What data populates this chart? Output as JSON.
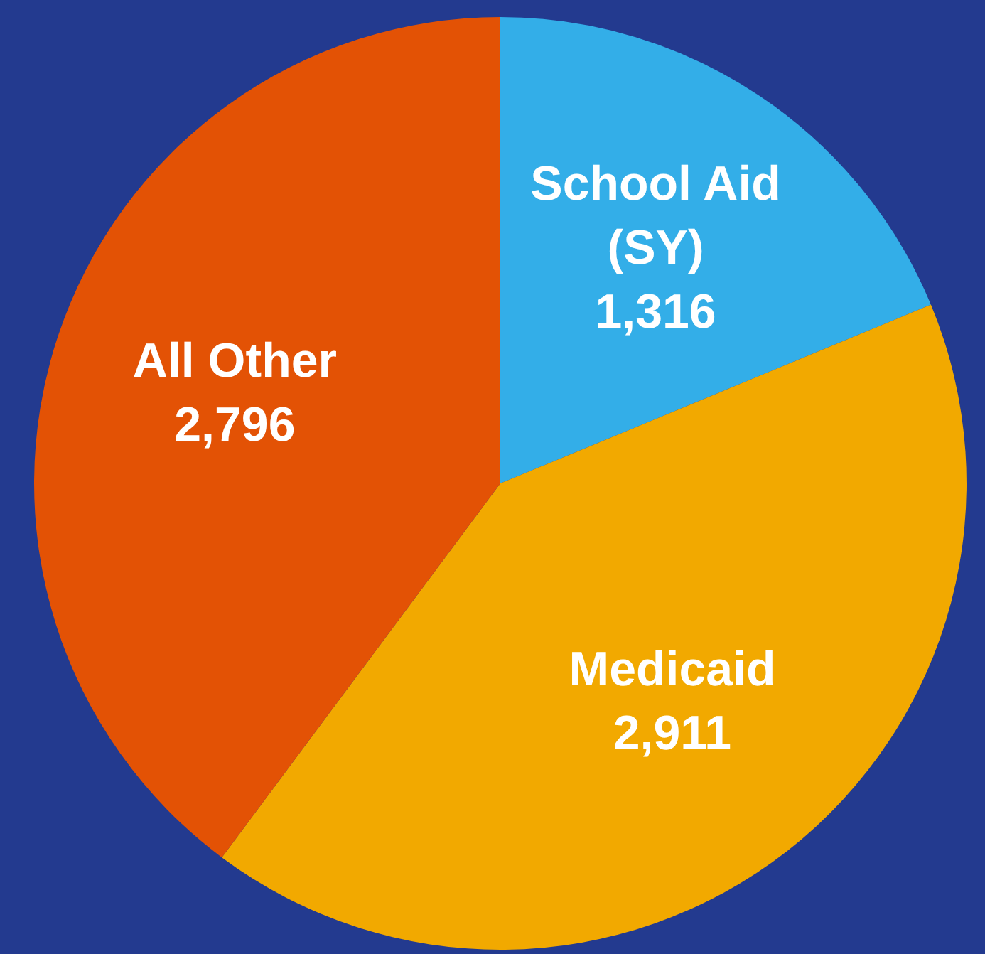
{
  "chart_data": {
    "type": "pie",
    "categories": [
      "School Aid (SY)",
      "Medicaid",
      "All Other"
    ],
    "values": [
      1316,
      2911,
      2796
    ],
    "value_labels": [
      "1,316",
      "2,911",
      "2,796"
    ],
    "colors": [
      "#33aee8",
      "#f2a900",
      "#e35205"
    ],
    "legend": false
  }
}
